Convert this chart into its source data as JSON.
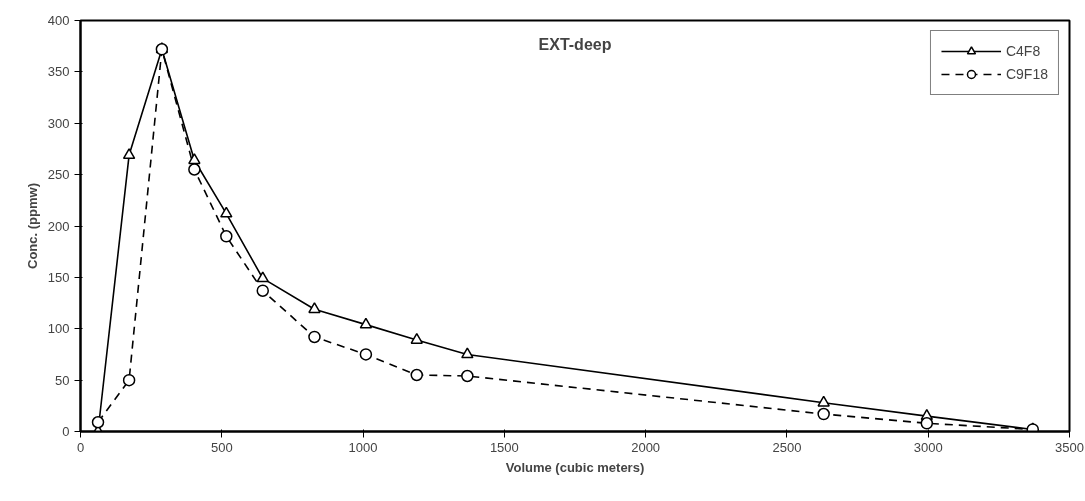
{
  "chart_data": {
    "type": "line",
    "title": "EXT-deep",
    "xlabel": "Volume (cubic meters)",
    "ylabel": "Conc. (ppmw)",
    "xlim": [
      0,
      3500
    ],
    "xticks": [
      0,
      500,
      1000,
      1500,
      2000,
      2500,
      3000,
      3500
    ],
    "ylim": [
      0,
      400
    ],
    "yticks": [
      0,
      50,
      100,
      150,
      200,
      250,
      300,
      350,
      400
    ],
    "grid": false,
    "legend": "top right",
    "series": [
      {
        "name": "C4F8",
        "color": "#000000",
        "marker": "triangle",
        "line_style": "solid",
        "x": [
          62,
          172,
          288,
          403,
          516,
          645,
          828,
          1010,
          1190,
          1369,
          2630,
          2995,
          3370
        ],
        "values": [
          0,
          269,
          372,
          264,
          212,
          149,
          119,
          104,
          89,
          75,
          28,
          15,
          2
        ]
      },
      {
        "name": "C9F18",
        "color": "#000000",
        "marker": "circle",
        "line_style": "dashed",
        "x": [
          62,
          172,
          288,
          403,
          516,
          645,
          828,
          1010,
          1190,
          1369,
          2630,
          2995,
          3370
        ],
        "values": [
          9,
          50,
          372,
          255,
          190,
          137,
          92,
          75,
          55,
          54,
          17,
          8,
          2
        ]
      }
    ]
  }
}
